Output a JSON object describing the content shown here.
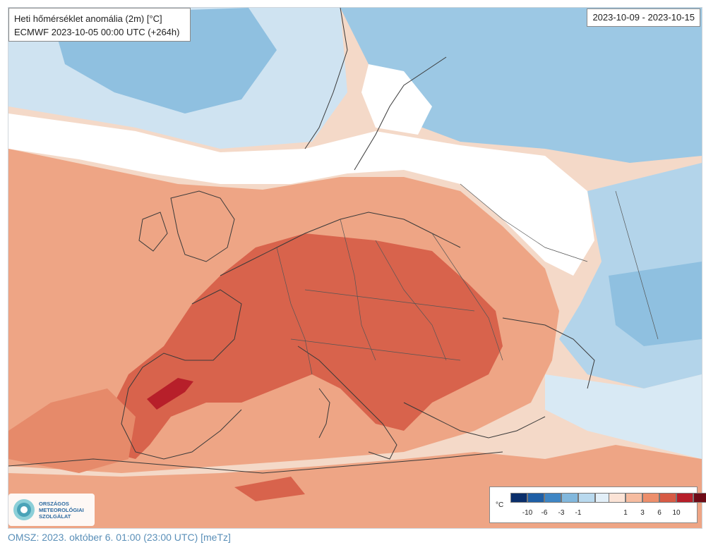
{
  "map": {
    "title": "Heti hőmérséklet anomália (2m) [°C]",
    "model_run": "ECMWF 2023-10-05 00:00 UTC (+264h)",
    "valid_period": "2023-10-09 - 2023-10-15",
    "region": "Europe"
  },
  "legend": {
    "unit": "°C",
    "cold_colors": [
      "#0b2f6b",
      "#1f5fa6",
      "#3f86c4",
      "#82b8dd",
      "#b9d9ee",
      "#e2eff8"
    ],
    "warm_colors": [
      "#fbe3d6",
      "#f6bca0",
      "#ed8f6c",
      "#d75b45",
      "#b71f2a",
      "#6e0b17"
    ],
    "tick_labels": [
      "-10",
      "-6",
      "-3",
      "-1",
      "1",
      "3",
      "6",
      "10"
    ]
  },
  "logo": {
    "line1": "ORSZÁGOS",
    "line2": "METEOROLÓGIAI",
    "line3": "SZOLGÁLAT"
  },
  "footer": {
    "text": "OMSZ: 2023. október 6. 01:00 (23:00 UTC) [meTz]"
  }
}
